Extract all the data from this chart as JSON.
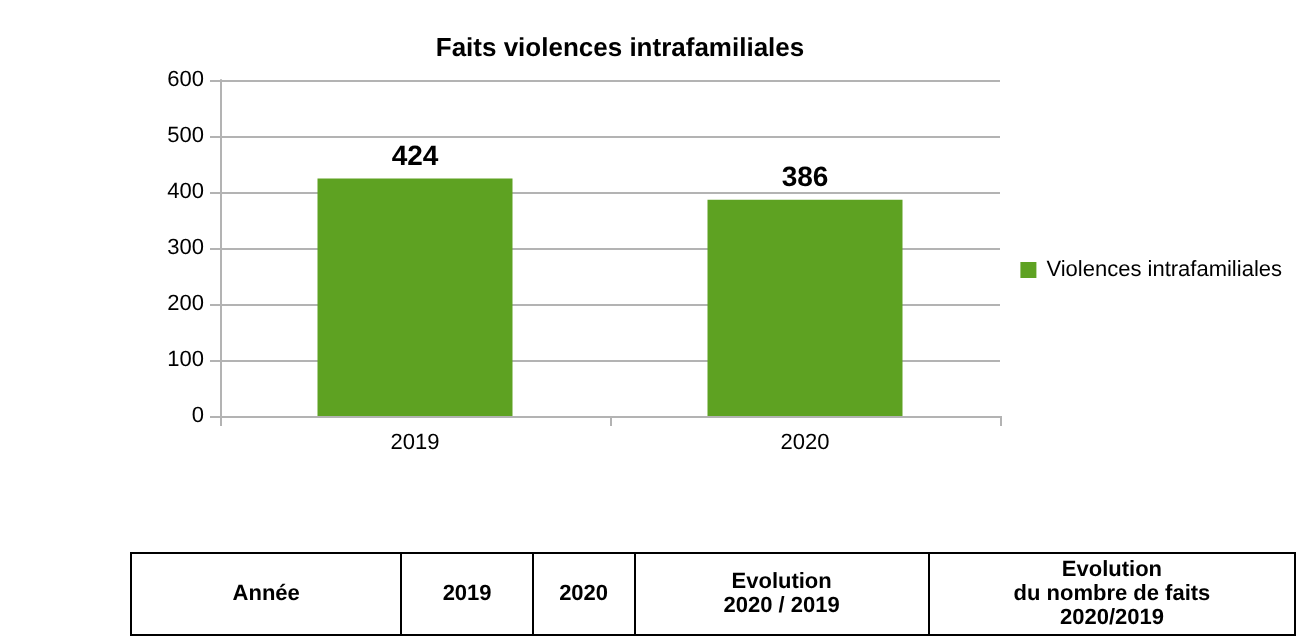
{
  "chart_data": {
    "type": "bar",
    "title": "Faits violences intrafamiliales",
    "categories": [
      "2019",
      "2020"
    ],
    "series": [
      {
        "name": "Violences intrafamiliales",
        "color": "#5ea222",
        "values": [
          424,
          386
        ]
      }
    ],
    "ylim": [
      0,
      600
    ],
    "yticks": [
      0,
      100,
      200,
      300,
      400,
      500,
      600
    ],
    "grid": "y",
    "legend": "right",
    "data_labels": true,
    "annotations": [
      "Année",
      "2019",
      "2020",
      "Evolution\n2020 / 2019",
      "Evolution\ndu nombre de faits\n2020/2019"
    ]
  }
}
